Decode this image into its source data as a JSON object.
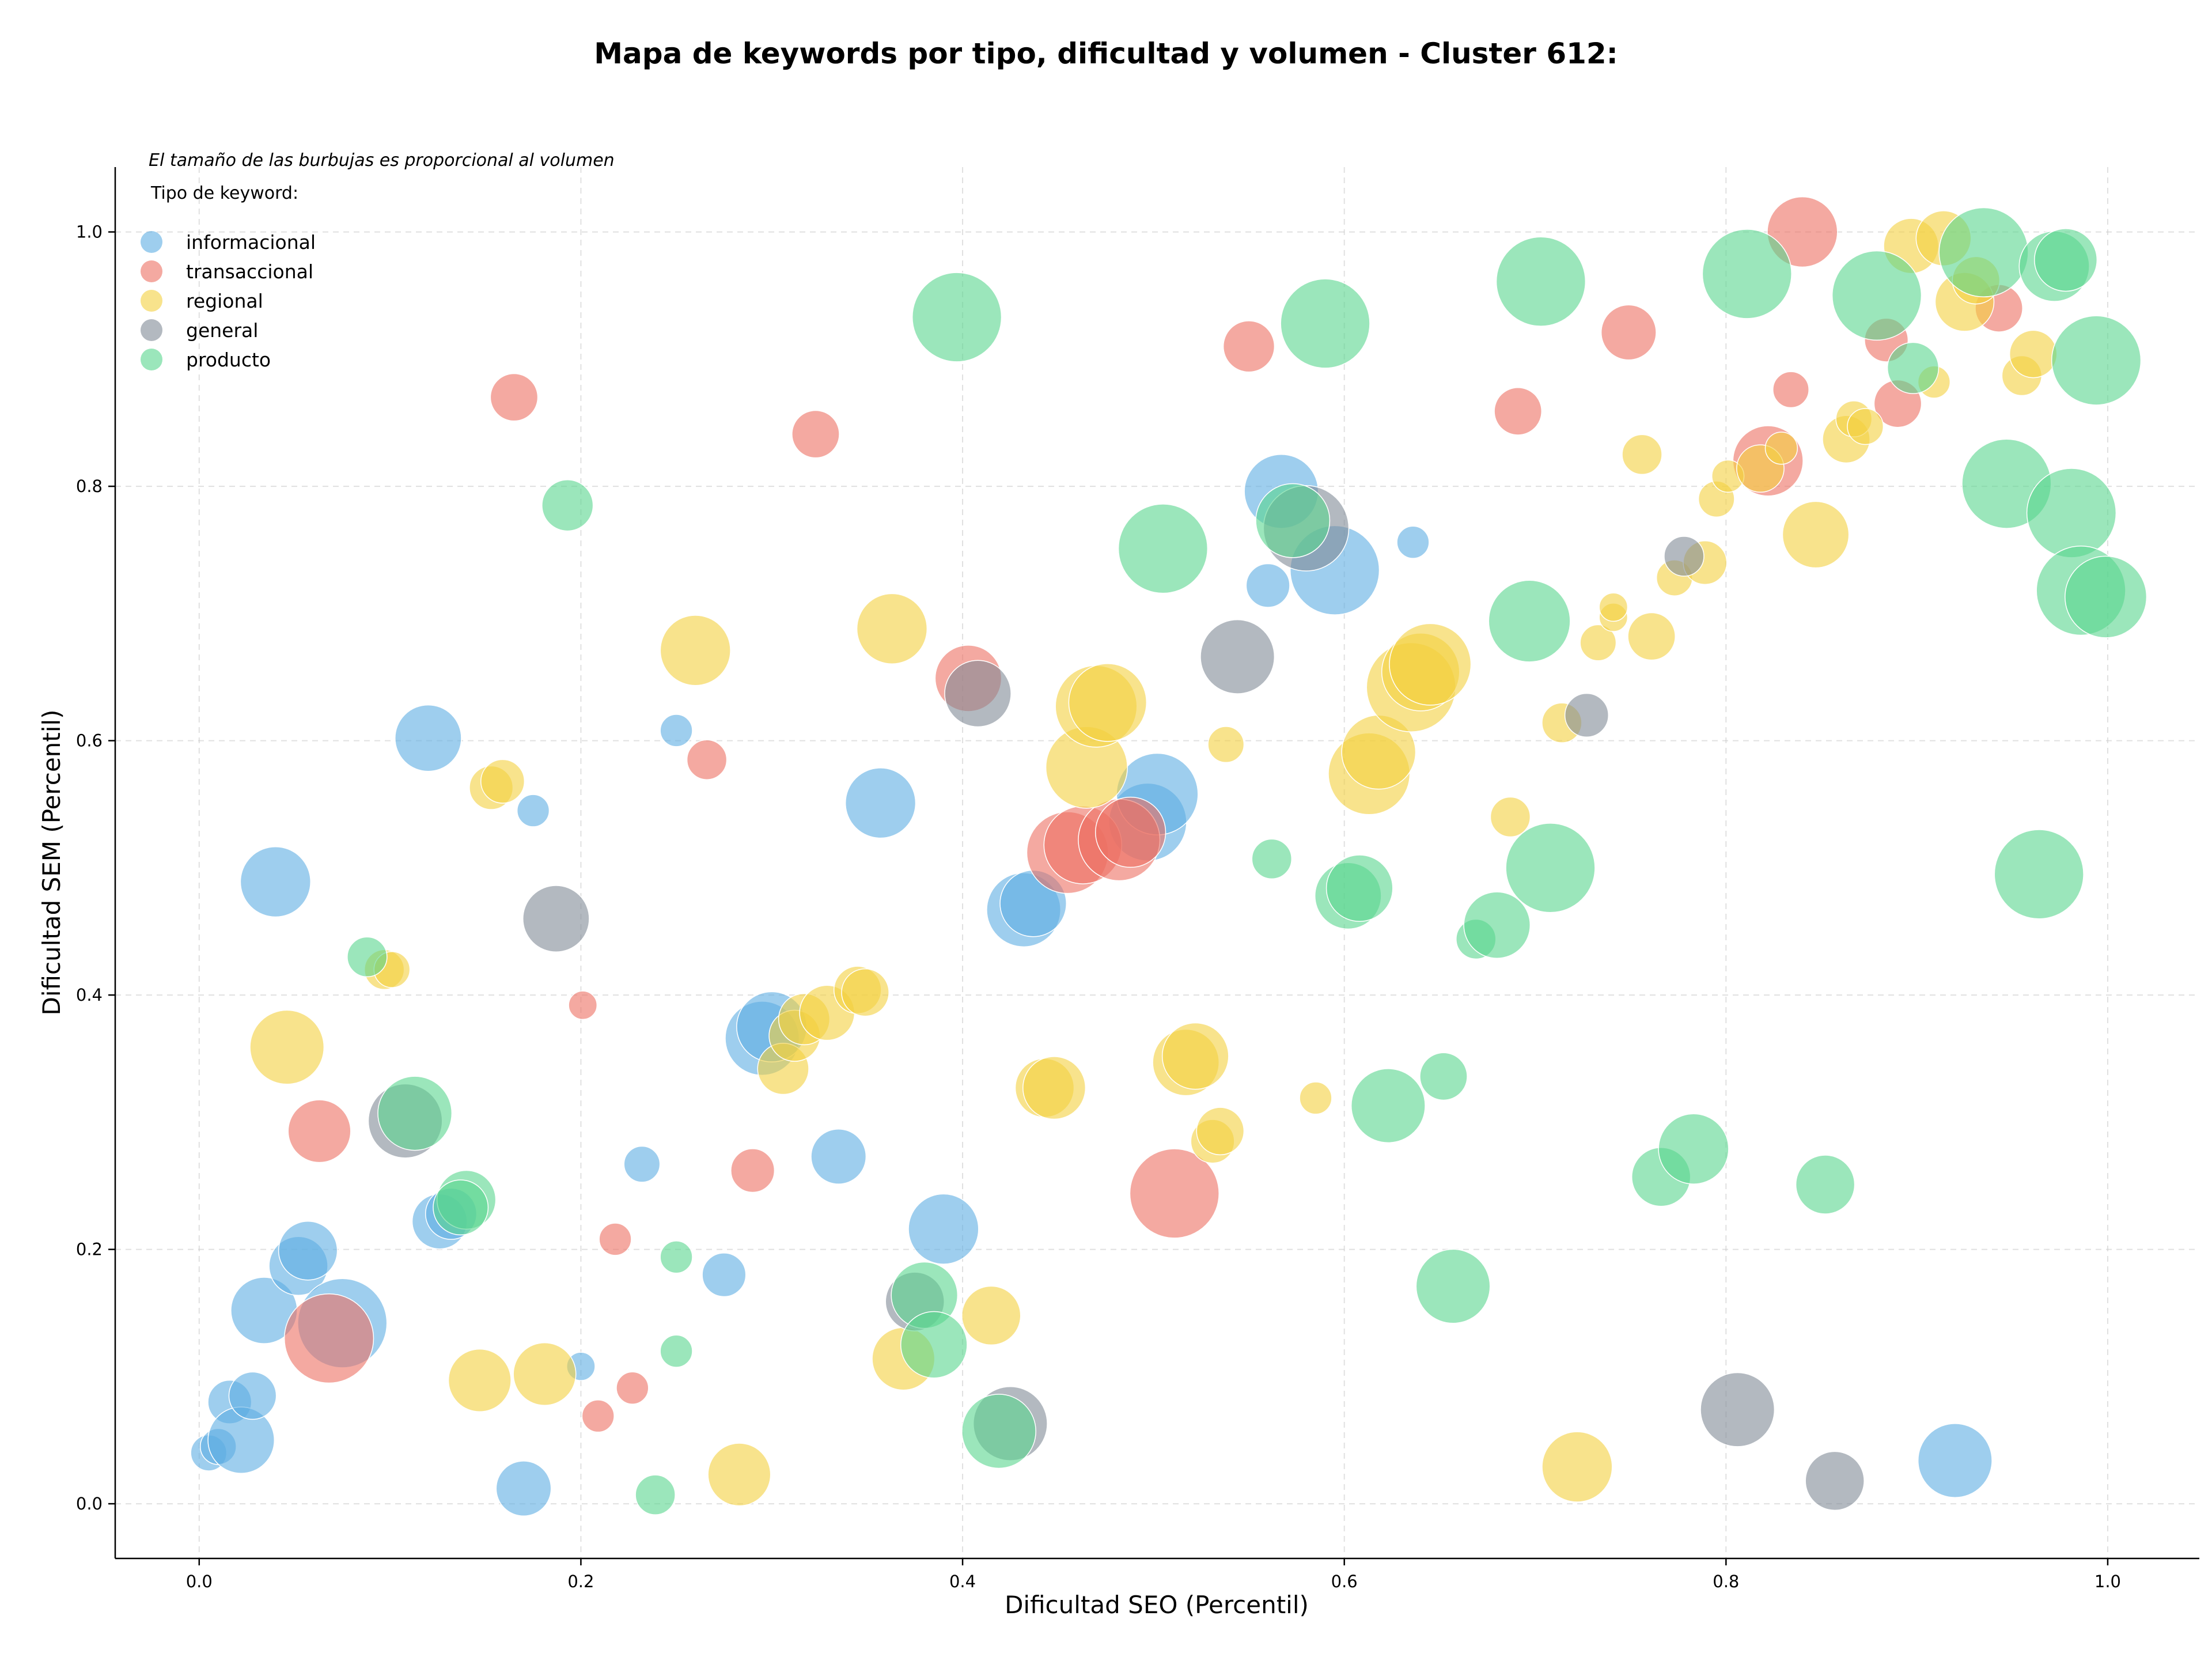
{
  "chart_data": {
    "type": "scatter",
    "title": "Mapa de keywords por tipo, dificultad y volumen - Cluster 612:",
    "note": "El tamaño de las burbujas es proporcional al volumen",
    "legend_title": "Tipo de keyword:",
    "legend_position": "top-left",
    "xlabel": "Dificultad SEO (Percentil)",
    "ylabel": "Dificultad SEM (Percentil)",
    "xlim": [
      -0.044,
      1.048
    ],
    "ylim": [
      -0.043,
      1.051
    ],
    "x_ticks": [
      "0.0",
      "0.2",
      "0.4",
      "0.6",
      "0.8",
      "1.0"
    ],
    "y_ticks": [
      "0.0",
      "0.2",
      "0.4",
      "0.6",
      "0.8",
      "1.0"
    ],
    "grid": true,
    "series": [
      {
        "name": "informacional",
        "color": "#5DADE2",
        "points": [
          [
            0.005,
            0.04,
            2
          ],
          [
            0.01,
            0.045,
            2
          ],
          [
            0.016,
            0.08,
            3
          ],
          [
            0.022,
            0.05,
            6
          ],
          [
            0.028,
            0.085,
            3.5
          ],
          [
            0.034,
            0.152,
            6
          ],
          [
            0.052,
            0.187,
            5
          ],
          [
            0.057,
            0.199,
            5
          ],
          [
            0.075,
            0.142,
            9
          ],
          [
            0.04,
            0.489,
            6.5
          ],
          [
            0.12,
            0.602,
            6
          ],
          [
            0.126,
            0.222,
            4.5
          ],
          [
            0.132,
            0.228,
            4
          ],
          [
            0.17,
            0.012,
            4.5
          ],
          [
            0.175,
            0.545,
            1.5
          ],
          [
            0.2,
            0.108,
            1
          ],
          [
            0.232,
            0.267,
            2
          ],
          [
            0.25,
            0.608,
            1.5
          ],
          [
            0.275,
            0.18,
            3
          ],
          [
            0.295,
            0.366,
            7
          ],
          [
            0.3,
            0.375,
            6.5
          ],
          [
            0.335,
            0.273,
            4.5
          ],
          [
            0.357,
            0.551,
            6.5
          ],
          [
            0.39,
            0.216,
            6.5
          ],
          [
            0.432,
            0.467,
            7
          ],
          [
            0.437,
            0.472,
            6
          ],
          [
            0.497,
            0.536,
            7.5
          ],
          [
            0.502,
            0.558,
            8
          ],
          [
            0.56,
            0.722,
            3
          ],
          [
            0.567,
            0.796,
            7
          ],
          [
            0.595,
            0.734,
            9
          ],
          [
            0.636,
            0.756,
            1.5
          ],
          [
            0.92,
            0.034,
            7
          ]
        ]
      },
      {
        "name": "transaccional",
        "color": "#EC7063",
        "points": [
          [
            0.063,
            0.293,
            5.5
          ],
          [
            0.068,
            0.13,
            9
          ],
          [
            0.165,
            0.87,
            3.5
          ],
          [
            0.201,
            0.392,
            1
          ],
          [
            0.209,
            0.069,
            1.5
          ],
          [
            0.218,
            0.208,
            1.5
          ],
          [
            0.227,
            0.091,
            1.5
          ],
          [
            0.266,
            0.585,
            2.5
          ],
          [
            0.29,
            0.262,
            3
          ],
          [
            0.323,
            0.841,
            3.5
          ],
          [
            0.403,
            0.649,
            6
          ],
          [
            0.455,
            0.512,
            8
          ],
          [
            0.463,
            0.518,
            7.5
          ],
          [
            0.482,
            0.522,
            8
          ],
          [
            0.488,
            0.528,
            6.5
          ],
          [
            0.511,
            0.244,
            9
          ],
          [
            0.55,
            0.91,
            4
          ],
          [
            0.691,
            0.859,
            3.5
          ],
          [
            0.749,
            0.921,
            4.5
          ],
          [
            0.822,
            0.82,
            6.5
          ],
          [
            0.834,
            0.876,
            2
          ],
          [
            0.84,
            1.0,
            6.5
          ],
          [
            0.884,
            0.915,
            3
          ],
          [
            0.89,
            0.865,
            3.5
          ],
          [
            0.943,
            0.94,
            3.5
          ]
        ]
      },
      {
        "name": "regional",
        "color": "#F4D03F",
        "points": [
          [
            0.046,
            0.359,
            7
          ],
          [
            0.097,
            0.42,
            2.5
          ],
          [
            0.101,
            0.42,
            2
          ],
          [
            0.147,
            0.097,
            5.5
          ],
          [
            0.153,
            0.563,
            3
          ],
          [
            0.159,
            0.568,
            3
          ],
          [
            0.181,
            0.102,
            5.5
          ],
          [
            0.26,
            0.671,
            6.5
          ],
          [
            0.283,
            0.023,
            5.5
          ],
          [
            0.306,
            0.342,
            4
          ],
          [
            0.312,
            0.368,
            4
          ],
          [
            0.317,
            0.381,
            4
          ],
          [
            0.329,
            0.386,
            4.5
          ],
          [
            0.345,
            0.404,
            3.5
          ],
          [
            0.349,
            0.402,
            3.5
          ],
          [
            0.363,
            0.688,
            6.5
          ],
          [
            0.369,
            0.114,
            5.5
          ],
          [
            0.415,
            0.148,
            5
          ],
          [
            0.443,
            0.327,
            5
          ],
          [
            0.448,
            0.327,
            5.5
          ],
          [
            0.465,
            0.579,
            8
          ],
          [
            0.47,
            0.627,
            8
          ],
          [
            0.476,
            0.63,
            7.5
          ],
          [
            0.517,
            0.347,
            6
          ],
          [
            0.522,
            0.352,
            6
          ],
          [
            0.531,
            0.285,
            3
          ],
          [
            0.535,
            0.293,
            3.5
          ],
          [
            0.538,
            0.597,
            2
          ],
          [
            0.585,
            0.319,
            1.5
          ],
          [
            0.613,
            0.574,
            8
          ],
          [
            0.618,
            0.591,
            7
          ],
          [
            0.635,
            0.642,
            9
          ],
          [
            0.64,
            0.654,
            7.5
          ],
          [
            0.645,
            0.66,
            8
          ],
          [
            0.687,
            0.54,
            2.5
          ],
          [
            0.714,
            0.614,
            2.5
          ],
          [
            0.722,
            0.029,
            6.5
          ],
          [
            0.733,
            0.677,
            2
          ],
          [
            0.741,
            0.697,
            1
          ],
          [
            0.741,
            0.705,
            1
          ],
          [
            0.761,
            0.682,
            3.5
          ],
          [
            0.756,
            0.825,
            2.5
          ],
          [
            0.773,
            0.728,
            2
          ],
          [
            0.789,
            0.74,
            3
          ],
          [
            0.795,
            0.79,
            2
          ],
          [
            0.801,
            0.808,
            1.5
          ],
          [
            0.818,
            0.814,
            3.5
          ],
          [
            0.829,
            0.83,
            1.5
          ],
          [
            0.847,
            0.762,
            6
          ],
          [
            0.863,
            0.837,
            3.5
          ],
          [
            0.867,
            0.853,
            2
          ],
          [
            0.873,
            0.847,
            2
          ],
          [
            0.897,
            0.989,
            4.5
          ],
          [
            0.909,
            0.882,
            1.5
          ],
          [
            0.914,
            0.995,
            4.5
          ],
          [
            0.925,
            0.945,
            5
          ],
          [
            0.955,
            0.887,
            2.5
          ],
          [
            0.961,
            0.904,
            3.5
          ],
          [
            0.931,
            0.962,
            3.5
          ]
        ]
      },
      {
        "name": "general",
        "color": "#808B96",
        "points": [
          [
            0.108,
            0.301,
            7
          ],
          [
            0.187,
            0.46,
            6
          ],
          [
            0.375,
            0.159,
            5
          ],
          [
            0.408,
            0.637,
            6
          ],
          [
            0.425,
            0.063,
            7
          ],
          [
            0.544,
            0.666,
            7
          ],
          [
            0.58,
            0.767,
            8.5
          ],
          [
            0.727,
            0.62,
            3
          ],
          [
            0.778,
            0.745,
            2.5
          ],
          [
            0.806,
            0.074,
            7
          ],
          [
            0.857,
            0.018,
            5
          ]
        ]
      },
      {
        "name": "producto",
        "color": "#58D68D",
        "points": [
          [
            0.088,
            0.43,
            2.5
          ],
          [
            0.113,
            0.307,
            7
          ],
          [
            0.14,
            0.239,
            5
          ],
          [
            0.137,
            0.233,
            4.5
          ],
          [
            0.193,
            0.785,
            4
          ],
          [
            0.239,
            0.007,
            2.5
          ],
          [
            0.25,
            0.12,
            1.5
          ],
          [
            0.25,
            0.194,
            1.5
          ],
          [
            0.38,
            0.164,
            6
          ],
          [
            0.385,
            0.125,
            6
          ],
          [
            0.397,
            0.933,
            9
          ],
          [
            0.419,
            0.057,
            7
          ],
          [
            0.505,
            0.751,
            9
          ],
          [
            0.562,
            0.507,
            2.5
          ],
          [
            0.573,
            0.773,
            7
          ],
          [
            0.59,
            0.928,
            9
          ],
          [
            0.602,
            0.478,
            6
          ],
          [
            0.608,
            0.484,
            6
          ],
          [
            0.623,
            0.313,
            7
          ],
          [
            0.652,
            0.336,
            3.5
          ],
          [
            0.657,
            0.171,
            7
          ],
          [
            0.669,
            0.444,
            2.5
          ],
          [
            0.68,
            0.455,
            6
          ],
          [
            0.697,
            0.694,
            8
          ],
          [
            0.703,
            0.961,
            9
          ],
          [
            0.708,
            0.5,
            9
          ],
          [
            0.766,
            0.257,
            5
          ],
          [
            0.783,
            0.279,
            6.5
          ],
          [
            0.811,
            0.967,
            9
          ],
          [
            0.852,
            0.251,
            5
          ],
          [
            0.879,
            0.95,
            9
          ],
          [
            0.898,
            0.893,
            4
          ],
          [
            0.935,
            0.984,
            9
          ],
          [
            0.947,
            0.802,
            9
          ],
          [
            0.964,
            0.495,
            9
          ],
          [
            0.972,
            0.973,
            6.5
          ],
          [
            0.978,
            0.978,
            5.5
          ],
          [
            0.981,
            0.779,
            9
          ],
          [
            0.986,
            0.718,
            9
          ],
          [
            0.994,
            0.899,
            9
          ],
          [
            0.999,
            0.713,
            8
          ]
        ]
      }
    ]
  }
}
